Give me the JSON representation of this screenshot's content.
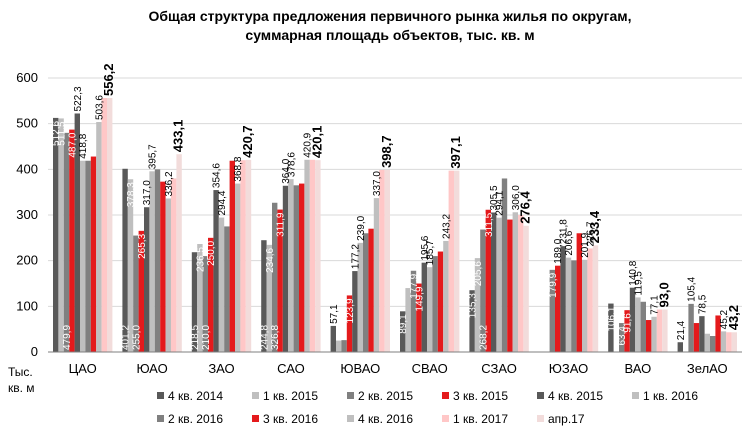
{
  "chart_data": {
    "type": "bar",
    "title_lines": [
      "Общая структура  предложения первичного рынка жилья по округам,",
      "суммарная площадь объектов, тыс. кв. м"
    ],
    "ylabel_lines": [
      "Тыс.",
      "кв. м"
    ],
    "ylim": [
      0,
      600
    ],
    "yticks": [
      "0",
      "100",
      "200",
      "300",
      "400",
      "500",
      "600"
    ],
    "grid": true,
    "legend_position": "bottom",
    "categories": [
      "ЦАО",
      "ЮАО",
      "ЗАО",
      "САО",
      "ЮВАО",
      "СВАО",
      "СЗАО",
      "ЮЗАО",
      "ВАО",
      "ЗелАО"
    ],
    "series": [
      {
        "name": "4 кв. 2014",
        "color": "#595959",
        "values": [
          512.6,
          401.2,
          218.5,
          244.8,
          57.1,
          89.1,
          135.3,
          null,
          106.1,
          21.4
        ]
      },
      {
        "name": "1 кв. 2015",
        "color": "#bfbfbf",
        "values": [
          511.5,
          378.3,
          236.5,
          234.6,
          25.0,
          140.0,
          205.6,
          null,
          null,
          null
        ]
      },
      {
        "name": "2 кв. 2015",
        "color": "#808080",
        "values": [
          479.9,
          255.0,
          210.0,
          326.8,
          26.0,
          177.9,
          268.2,
          179.9,
          63.4,
          105.4
        ]
      },
      {
        "name": "3 кв. 2015",
        "color": "#e41a1c",
        "values": [
          487.0,
          265.3,
          250.0,
          311.9,
          123.9,
          149.9,
          311.5,
          189.0,
          91.6,
          63.4
        ]
      },
      {
        "name": "4 кв. 2015",
        "color": "#595959",
        "values": [
          522.3,
          317.0,
          354.6,
          364.0,
          177.2,
          195.6,
          305.5,
          231.8,
          140.8,
          78.5
        ]
      },
      {
        "name": "1 кв. 2016",
        "color": "#bfbfbf",
        "values": [
          418.8,
          395.7,
          294.4,
          378.6,
          239.0,
          185.7,
          294.1,
          206.6,
          119.5,
          40.0
        ]
      },
      {
        "name": "2 кв. 2016",
        "color": "#808080",
        "values": [
          418.8,
          400.0,
          275.0,
          365.0,
          260.0,
          210.0,
          380.0,
          200.6,
          110.0,
          35.0
        ]
      },
      {
        "name": "3 кв. 2016",
        "color": "#e41a1c",
        "values": [
          428.0,
          373.0,
          418.8,
          368.8,
          270.0,
          220.0,
          290.0,
          260.0,
          70.0,
          80.0
        ]
      },
      {
        "name": "4 кв. 2016",
        "color": "#bfbfbf",
        "values": [
          503.6,
          336.2,
          368.8,
          420.9,
          337.0,
          243.2,
          306.0,
          201.9,
          77.1,
          45.2
        ]
      },
      {
        "name": "1 кв. 2017",
        "color": "#ffc7c7",
        "values": [
          556.2,
          380.0,
          420.0,
          420.9,
          398.7,
          397.1,
          300.0,
          226.7,
          93.0,
          43.2
        ]
      },
      {
        "name": "апр.17",
        "color": "#f2dcdb",
        "values": [
          556.2,
          433.1,
          420.7,
          420.1,
          398.7,
          397.1,
          276.4,
          233.4,
          93.0,
          43.2
        ]
      }
    ],
    "data_labels": [
      {
        "cat": 0,
        "series": 0,
        "text": "512,6",
        "pos": "inside",
        "color": "#ffffff"
      },
      {
        "cat": 0,
        "series": 1,
        "text": "511,5",
        "pos": "inside",
        "color": "#ffffff"
      },
      {
        "cat": 0,
        "series": 2,
        "text": "479,9",
        "pos": "bottom",
        "color": "#ffffff"
      },
      {
        "cat": 0,
        "series": 3,
        "text": "487,0",
        "pos": "inside",
        "color": "#ffffff"
      },
      {
        "cat": 0,
        "series": 4,
        "text": "522,3",
        "pos": "above",
        "color": "#000000"
      },
      {
        "cat": 0,
        "series": 5,
        "text": "418,8",
        "pos": "above",
        "color": "#000000"
      },
      {
        "cat": 0,
        "series": 8,
        "text": "503,6",
        "pos": "above",
        "color": "#000000"
      },
      {
        "cat": 0,
        "series": 10,
        "text": "556,2",
        "pos": "above",
        "color": "#000000",
        "big": true
      },
      {
        "cat": 1,
        "series": 0,
        "text": "401,2",
        "pos": "bottom",
        "color": "#ffffff"
      },
      {
        "cat": 1,
        "series": 1,
        "text": "378,3",
        "pos": "inside",
        "color": "#ffffff"
      },
      {
        "cat": 1,
        "series": 2,
        "text": "255,0",
        "pos": "bottom",
        "color": "#ffffff"
      },
      {
        "cat": 1,
        "series": 3,
        "text": "265,3",
        "pos": "inside",
        "color": "#ffffff"
      },
      {
        "cat": 1,
        "series": 4,
        "text": "317,0",
        "pos": "above",
        "color": "#000000"
      },
      {
        "cat": 1,
        "series": 5,
        "text": "395,7",
        "pos": "above",
        "color": "#000000"
      },
      {
        "cat": 1,
        "series": 8,
        "text": "336,2",
        "pos": "above",
        "color": "#000000"
      },
      {
        "cat": 1,
        "series": 10,
        "text": "433,1",
        "pos": "above",
        "color": "#000000",
        "big": true
      },
      {
        "cat": 2,
        "series": 0,
        "text": "218,5",
        "pos": "bottom",
        "color": "#ffffff"
      },
      {
        "cat": 2,
        "series": 1,
        "text": "236,5",
        "pos": "inside",
        "color": "#ffffff"
      },
      {
        "cat": 2,
        "series": 2,
        "text": "210,0",
        "pos": "bottom",
        "color": "#ffffff"
      },
      {
        "cat": 2,
        "series": 3,
        "text": "250,0",
        "pos": "inside",
        "color": "#ffffff"
      },
      {
        "cat": 2,
        "series": 4,
        "text": "354,6",
        "pos": "above",
        "color": "#000000"
      },
      {
        "cat": 2,
        "series": 5,
        "text": "294,4",
        "pos": "above",
        "color": "#000000"
      },
      {
        "cat": 2,
        "series": 8,
        "text": "368,8",
        "pos": "above",
        "color": "#000000"
      },
      {
        "cat": 2,
        "series": 10,
        "text": "420,7",
        "pos": "above",
        "color": "#000000",
        "big": true
      },
      {
        "cat": 3,
        "series": 0,
        "text": "244,8",
        "pos": "bottom",
        "color": "#ffffff"
      },
      {
        "cat": 3,
        "series": 1,
        "text": "234,6",
        "pos": "inside",
        "color": "#ffffff"
      },
      {
        "cat": 3,
        "series": 2,
        "text": "326,8",
        "pos": "bottom",
        "color": "#ffffff"
      },
      {
        "cat": 3,
        "series": 3,
        "text": "311,9",
        "pos": "inside",
        "color": "#ffffff"
      },
      {
        "cat": 3,
        "series": 4,
        "text": "364,0",
        "pos": "above",
        "color": "#000000"
      },
      {
        "cat": 3,
        "series": 5,
        "text": "378,6",
        "pos": "above",
        "color": "#000000"
      },
      {
        "cat": 3,
        "series": 8,
        "text": "420,9",
        "pos": "above",
        "color": "#000000"
      },
      {
        "cat": 3,
        "series": 10,
        "text": "420,1",
        "pos": "above",
        "color": "#000000",
        "big": true
      },
      {
        "cat": 4,
        "series": 0,
        "text": "57,1",
        "pos": "above",
        "color": "#000000"
      },
      {
        "cat": 4,
        "series": 3,
        "text": "123,9",
        "pos": "inside",
        "color": "#ffffff"
      },
      {
        "cat": 4,
        "series": 4,
        "text": "177,2",
        "pos": "above",
        "color": "#000000"
      },
      {
        "cat": 4,
        "series": 5,
        "text": "239,0",
        "pos": "above",
        "color": "#000000"
      },
      {
        "cat": 4,
        "series": 8,
        "text": "337,0",
        "pos": "above",
        "color": "#000000"
      },
      {
        "cat": 4,
        "series": 10,
        "text": "398,7",
        "pos": "above",
        "color": "#000000",
        "big": true
      },
      {
        "cat": 5,
        "series": 0,
        "text": "89,1",
        "pos": "inside",
        "color": "#ffffff"
      },
      {
        "cat": 5,
        "series": 2,
        "text": "177,9",
        "pos": "inside",
        "color": "#ffffff"
      },
      {
        "cat": 5,
        "series": 3,
        "text": "149,9",
        "pos": "inside",
        "color": "#ffffff"
      },
      {
        "cat": 5,
        "series": 4,
        "text": "195,6",
        "pos": "above",
        "color": "#000000"
      },
      {
        "cat": 5,
        "series": 5,
        "text": "185,7",
        "pos": "above",
        "color": "#000000"
      },
      {
        "cat": 5,
        "series": 8,
        "text": "243,2",
        "pos": "above",
        "color": "#000000"
      },
      {
        "cat": 5,
        "series": 10,
        "text": "397,1",
        "pos": "above",
        "color": "#000000",
        "big": true
      },
      {
        "cat": 6,
        "series": 0,
        "text": "135,3",
        "pos": "inside",
        "color": "#ffffff"
      },
      {
        "cat": 6,
        "series": 1,
        "text": "205,6",
        "pos": "inside",
        "color": "#ffffff"
      },
      {
        "cat": 6,
        "series": 2,
        "text": "268,2",
        "pos": "bottom",
        "color": "#ffffff"
      },
      {
        "cat": 6,
        "series": 3,
        "text": "311,5",
        "pos": "inside",
        "color": "#ffffff"
      },
      {
        "cat": 6,
        "series": 4,
        "text": "305,5",
        "pos": "above",
        "color": "#000000"
      },
      {
        "cat": 6,
        "series": 5,
        "text": "294,1",
        "pos": "above",
        "color": "#000000"
      },
      {
        "cat": 6,
        "series": 8,
        "text": "306,0",
        "pos": "above",
        "color": "#000000"
      },
      {
        "cat": 6,
        "series": 10,
        "text": "276,4",
        "pos": "above",
        "color": "#000000",
        "big": true
      },
      {
        "cat": 7,
        "series": 2,
        "text": "179,9",
        "pos": "inside",
        "color": "#ffffff"
      },
      {
        "cat": 7,
        "series": 3,
        "text": "189,0",
        "pos": "above",
        "color": "#000000"
      },
      {
        "cat": 7,
        "series": 4,
        "text": "231,8",
        "pos": "above",
        "color": "#000000"
      },
      {
        "cat": 7,
        "series": 5,
        "text": "206,6",
        "pos": "above",
        "color": "#000000"
      },
      {
        "cat": 7,
        "series": 8,
        "text": "201,9",
        "pos": "above",
        "color": "#000000"
      },
      {
        "cat": 7,
        "series": 9,
        "text": "226,7",
        "pos": "above",
        "color": "#000000"
      },
      {
        "cat": 7,
        "series": 10,
        "text": "233,4",
        "pos": "above",
        "color": "#000000",
        "big": true
      },
      {
        "cat": 8,
        "series": 0,
        "text": "106,1",
        "pos": "inside",
        "color": "#ffffff"
      },
      {
        "cat": 8,
        "series": 2,
        "text": "63,4",
        "pos": "inside",
        "color": "#ffffff"
      },
      {
        "cat": 8,
        "series": 3,
        "text": "91,6",
        "pos": "inside",
        "color": "#ffffff"
      },
      {
        "cat": 8,
        "series": 4,
        "text": "140,8",
        "pos": "above",
        "color": "#000000"
      },
      {
        "cat": 8,
        "series": 5,
        "text": "119,5",
        "pos": "above",
        "color": "#000000"
      },
      {
        "cat": 8,
        "series": 8,
        "text": "77,1",
        "pos": "above",
        "color": "#000000"
      },
      {
        "cat": 8,
        "series": 10,
        "text": "93,0",
        "pos": "above",
        "color": "#000000",
        "big": true
      },
      {
        "cat": 9,
        "series": 0,
        "text": "21,4",
        "pos": "above",
        "color": "#000000"
      },
      {
        "cat": 9,
        "series": 2,
        "text": "105,4",
        "pos": "above",
        "color": "#000000"
      },
      {
        "cat": 9,
        "series": 4,
        "text": "78,5",
        "pos": "above",
        "color": "#000000"
      },
      {
        "cat": 9,
        "series": 8,
        "text": "45,2",
        "pos": "above",
        "color": "#000000"
      },
      {
        "cat": 9,
        "series": 10,
        "text": "43,2",
        "pos": "above",
        "color": "#000000",
        "big": true
      }
    ]
  }
}
